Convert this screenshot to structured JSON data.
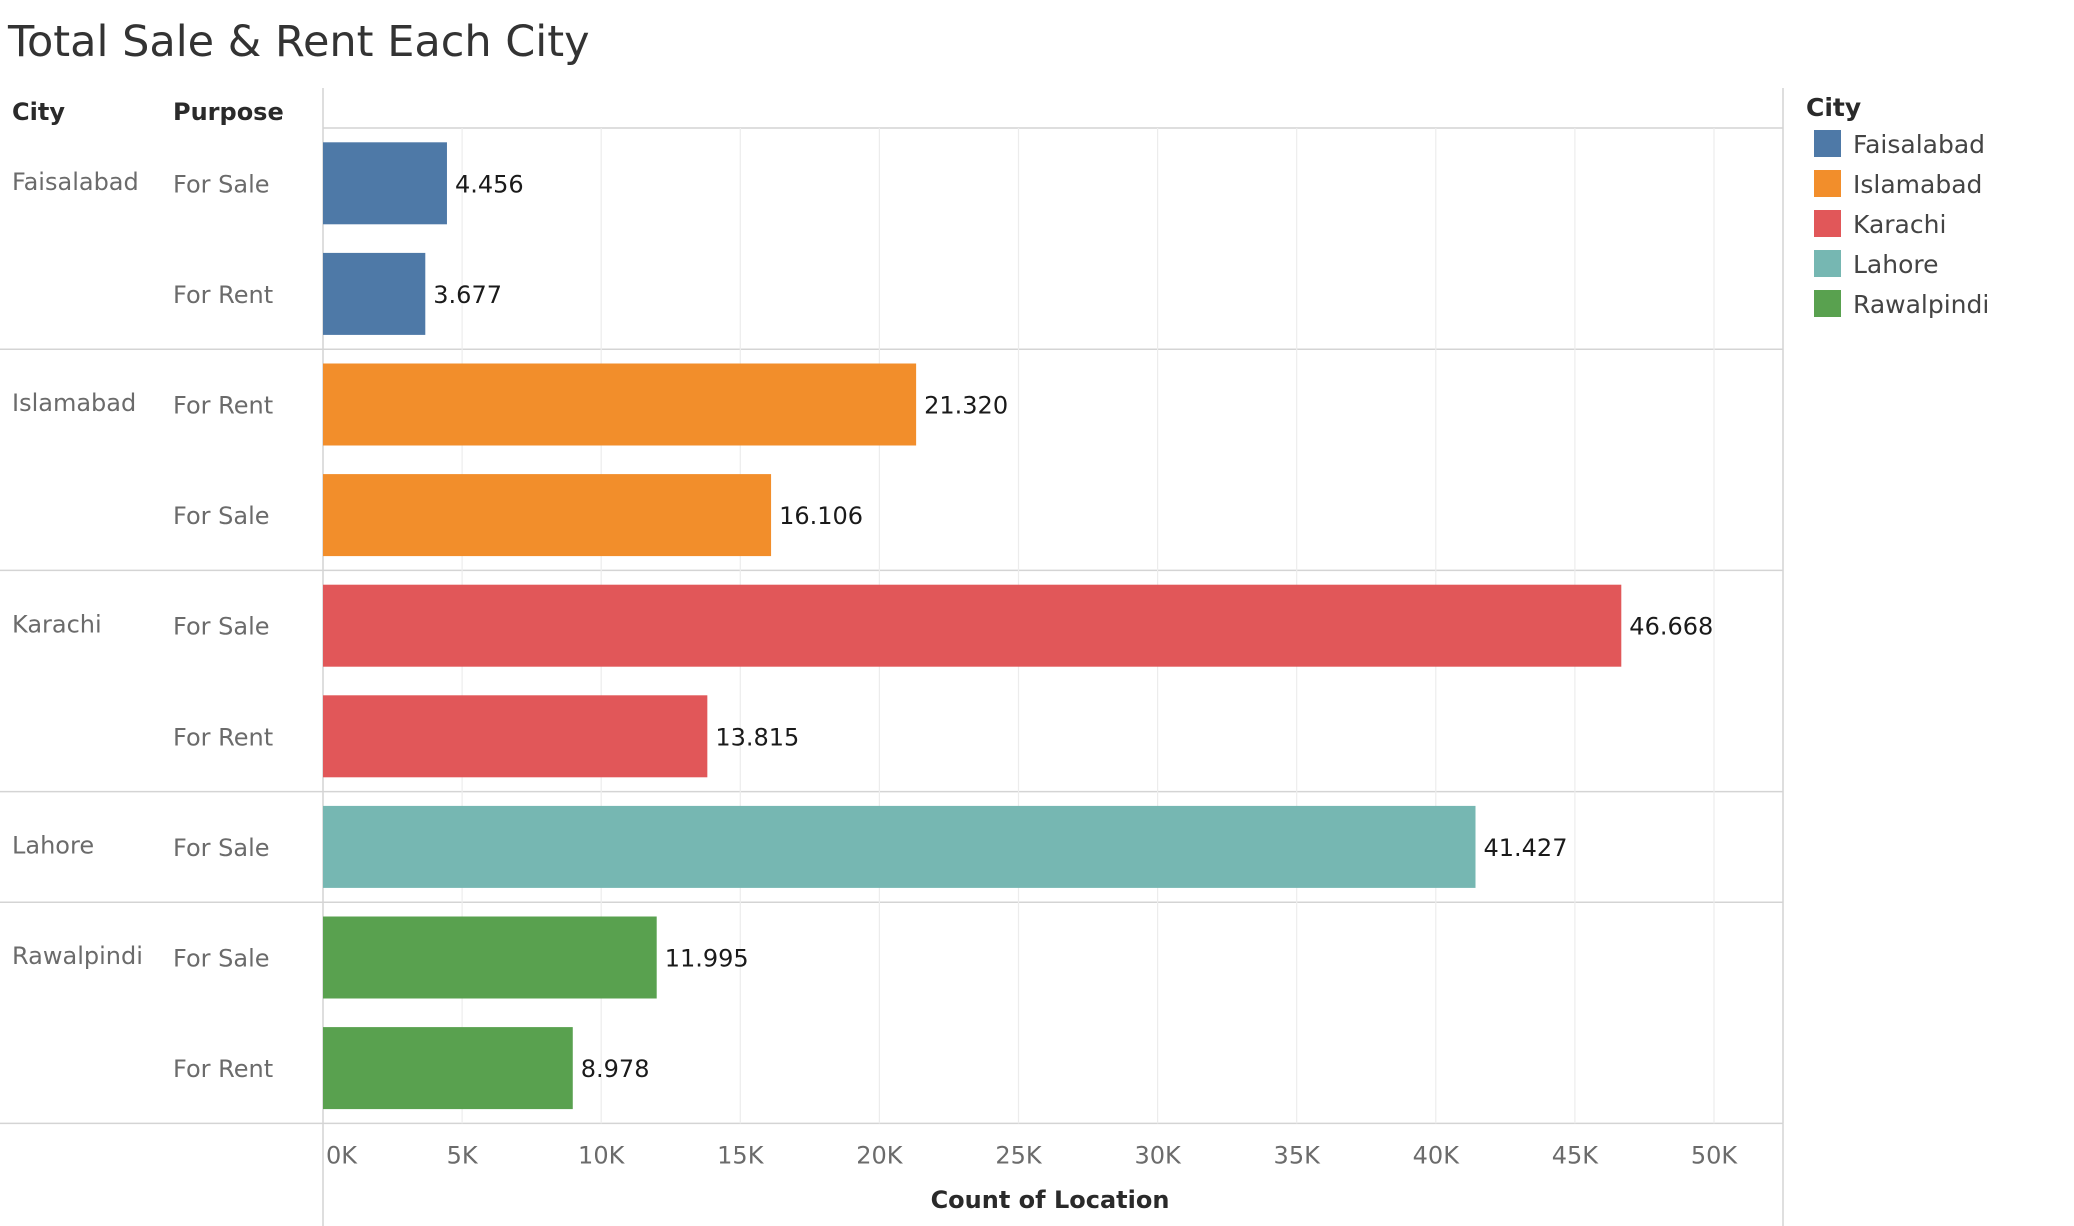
{
  "title": "Total Sale & Rent Each City",
  "headers": {
    "city": "City",
    "purpose": "Purpose"
  },
  "legend": {
    "title": "City",
    "items": [
      {
        "label": "Faisalabad",
        "color": "#4e79a7"
      },
      {
        "label": "Islamabad",
        "color": "#f28e2b"
      },
      {
        "label": "Karachi",
        "color": "#e15759"
      },
      {
        "label": "Lahore",
        "color": "#76b7b2"
      },
      {
        "label": "Rawalpindi",
        "color": "#59a14f"
      }
    ]
  },
  "chart_data": {
    "type": "bar",
    "orientation": "horizontal",
    "title": "Total Sale & Rent Each City",
    "xlabel": "Count of Location",
    "ylabel": "",
    "xlim": [
      0,
      52500
    ],
    "x_ticks": [
      "0K",
      "5K",
      "10K",
      "15K",
      "20K",
      "25K",
      "30K",
      "35K",
      "40K",
      "45K",
      "50K"
    ],
    "grid": "vertical",
    "legend_position": "right",
    "groups": [
      {
        "city": "Faisalabad",
        "color": "#4e79a7",
        "rows": [
          {
            "purpose": "For Sale",
            "value": 4456,
            "label": "4.456"
          },
          {
            "purpose": "For Rent",
            "value": 3677,
            "label": "3.677"
          }
        ]
      },
      {
        "city": "Islamabad",
        "color": "#f28e2b",
        "rows": [
          {
            "purpose": "For Rent",
            "value": 21320,
            "label": "21.320"
          },
          {
            "purpose": "For Sale",
            "value": 16106,
            "label": "16.106"
          }
        ]
      },
      {
        "city": "Karachi",
        "color": "#e15759",
        "rows": [
          {
            "purpose": "For Sale",
            "value": 46668,
            "label": "46.668"
          },
          {
            "purpose": "For Rent",
            "value": 13815,
            "label": "13.815"
          }
        ]
      },
      {
        "city": "Lahore",
        "color": "#76b7b2",
        "rows": [
          {
            "purpose": "For Sale",
            "value": 41427,
            "label": "41.427"
          }
        ]
      },
      {
        "city": "Rawalpindi",
        "color": "#59a14f",
        "rows": [
          {
            "purpose": "For Sale",
            "value": 11995,
            "label": "11.995"
          },
          {
            "purpose": "For Rent",
            "value": 8978,
            "label": "8.978"
          }
        ]
      }
    ]
  }
}
